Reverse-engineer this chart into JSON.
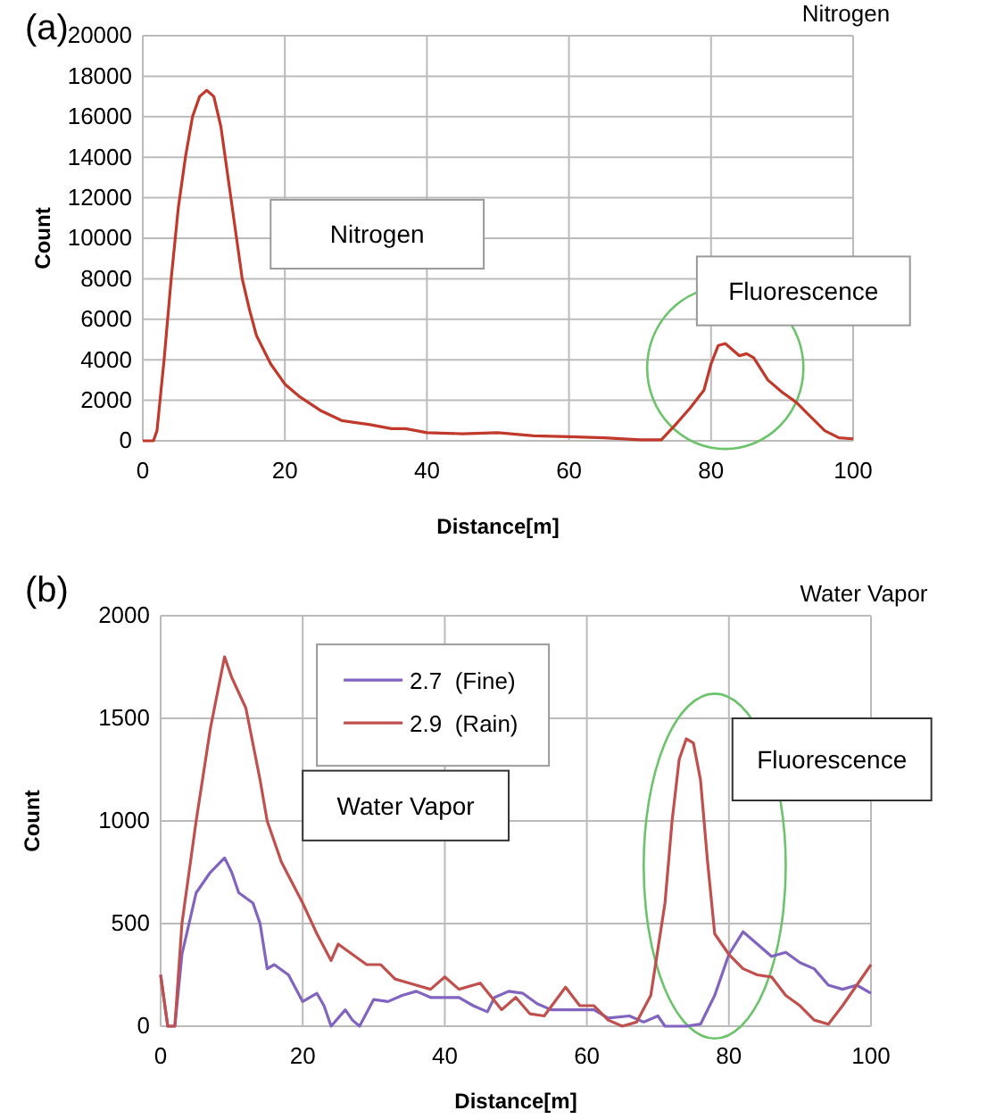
{
  "chart_data": [
    {
      "type": "line",
      "title": "Nitrogen",
      "xlabel": "Distance[m]",
      "ylabel": "Count",
      "annotations": [
        "(a)",
        "Nitrogen",
        "Fluorescence"
      ],
      "xlim": [
        0,
        100
      ],
      "xticks": [
        0,
        20,
        40,
        60,
        80,
        100
      ],
      "ylim": [
        0,
        20000
      ],
      "yticks": [
        0,
        2000,
        4000,
        6000,
        8000,
        10000,
        12000,
        14000,
        16000,
        18000,
        20000
      ],
      "grid": true,
      "legend": false,
      "series": [
        {
          "color": "#c0392b",
          "x": [
            0,
            1.5,
            2,
            3,
            4,
            5,
            6,
            7,
            8,
            9,
            10,
            11,
            12,
            13,
            14,
            15,
            16,
            18,
            20,
            22,
            25,
            28,
            32,
            35,
            37,
            40,
            45,
            50,
            55,
            60,
            65,
            70,
            73,
            75,
            77,
            79,
            80,
            81,
            82,
            84,
            85,
            86,
            88,
            90,
            92,
            94,
            96,
            98,
            100
          ],
          "values": [
            0,
            0,
            500,
            4000,
            8000,
            11500,
            14000,
            16000,
            17000,
            17300,
            17000,
            15500,
            13000,
            10500,
            8000,
            6500,
            5200,
            3800,
            2800,
            2200,
            1500,
            1000,
            800,
            600,
            600,
            400,
            350,
            400,
            250,
            200,
            150,
            50,
            50,
            800,
            1600,
            2500,
            3800,
            4700,
            4800,
            4200,
            4300,
            4100,
            3000,
            2400,
            1900,
            1200,
            500,
            150,
            100
          ]
        }
      ]
    },
    {
      "type": "line",
      "title": "Water Vapor",
      "xlabel": "Distance[m]",
      "ylabel": "Count",
      "annotations": [
        "(b)",
        "Water Vapor",
        "Fluorescence"
      ],
      "xlim": [
        0,
        100
      ],
      "xticks": [
        0,
        20,
        40,
        60,
        80,
        100
      ],
      "ylim": [
        0,
        2000
      ],
      "yticks": [
        0,
        500,
        1000,
        1500,
        2000
      ],
      "grid": true,
      "legend": "top left",
      "series": [
        {
          "name": "2.7  (Fine)",
          "color": "#8064c0",
          "x": [
            0,
            1,
            2,
            3,
            5,
            7,
            9,
            10,
            11,
            13,
            14,
            15,
            16,
            18,
            20,
            22,
            23,
            24,
            26,
            27,
            28,
            30,
            32,
            34,
            36,
            38,
            40,
            42,
            44,
            46,
            47,
            49,
            51,
            53,
            55,
            58,
            61,
            63,
            66,
            68,
            70,
            71,
            74,
            76,
            78,
            80,
            82,
            84,
            86,
            88,
            90,
            92,
            94,
            96,
            98,
            100
          ],
          "values": [
            250,
            0,
            0,
            350,
            650,
            750,
            820,
            750,
            650,
            600,
            500,
            280,
            300,
            250,
            120,
            160,
            100,
            0,
            80,
            30,
            0,
            130,
            120,
            150,
            170,
            140,
            140,
            140,
            100,
            70,
            140,
            170,
            160,
            110,
            80,
            80,
            80,
            40,
            50,
            20,
            50,
            0,
            0,
            10,
            150,
            350,
            460,
            400,
            340,
            360,
            310,
            280,
            200,
            180,
            200,
            160
          ]
        },
        {
          "name": "2.9  (Rain)",
          "color": "#c0504d",
          "x": [
            0,
            1,
            2,
            3,
            5,
            7,
            9,
            10,
            12,
            14,
            15,
            17,
            20,
            22,
            24,
            25,
            27,
            29,
            31,
            33,
            35,
            38,
            40,
            42,
            45,
            48,
            50,
            52,
            54,
            57,
            59,
            61,
            63,
            65,
            67,
            69,
            71,
            72,
            73,
            74,
            75,
            76,
            77,
            78,
            80,
            82,
            84,
            86,
            88,
            90,
            92,
            94,
            96,
            98,
            100
          ],
          "values": [
            250,
            0,
            0,
            500,
            1000,
            1450,
            1800,
            1700,
            1550,
            1200,
            1000,
            800,
            600,
            450,
            320,
            400,
            350,
            300,
            300,
            230,
            210,
            180,
            240,
            180,
            210,
            80,
            140,
            60,
            50,
            190,
            100,
            100,
            30,
            0,
            20,
            150,
            600,
            1000,
            1300,
            1400,
            1380,
            1200,
            800,
            450,
            350,
            280,
            250,
            240,
            150,
            100,
            30,
            10,
            100,
            200,
            300
          ]
        }
      ]
    }
  ]
}
